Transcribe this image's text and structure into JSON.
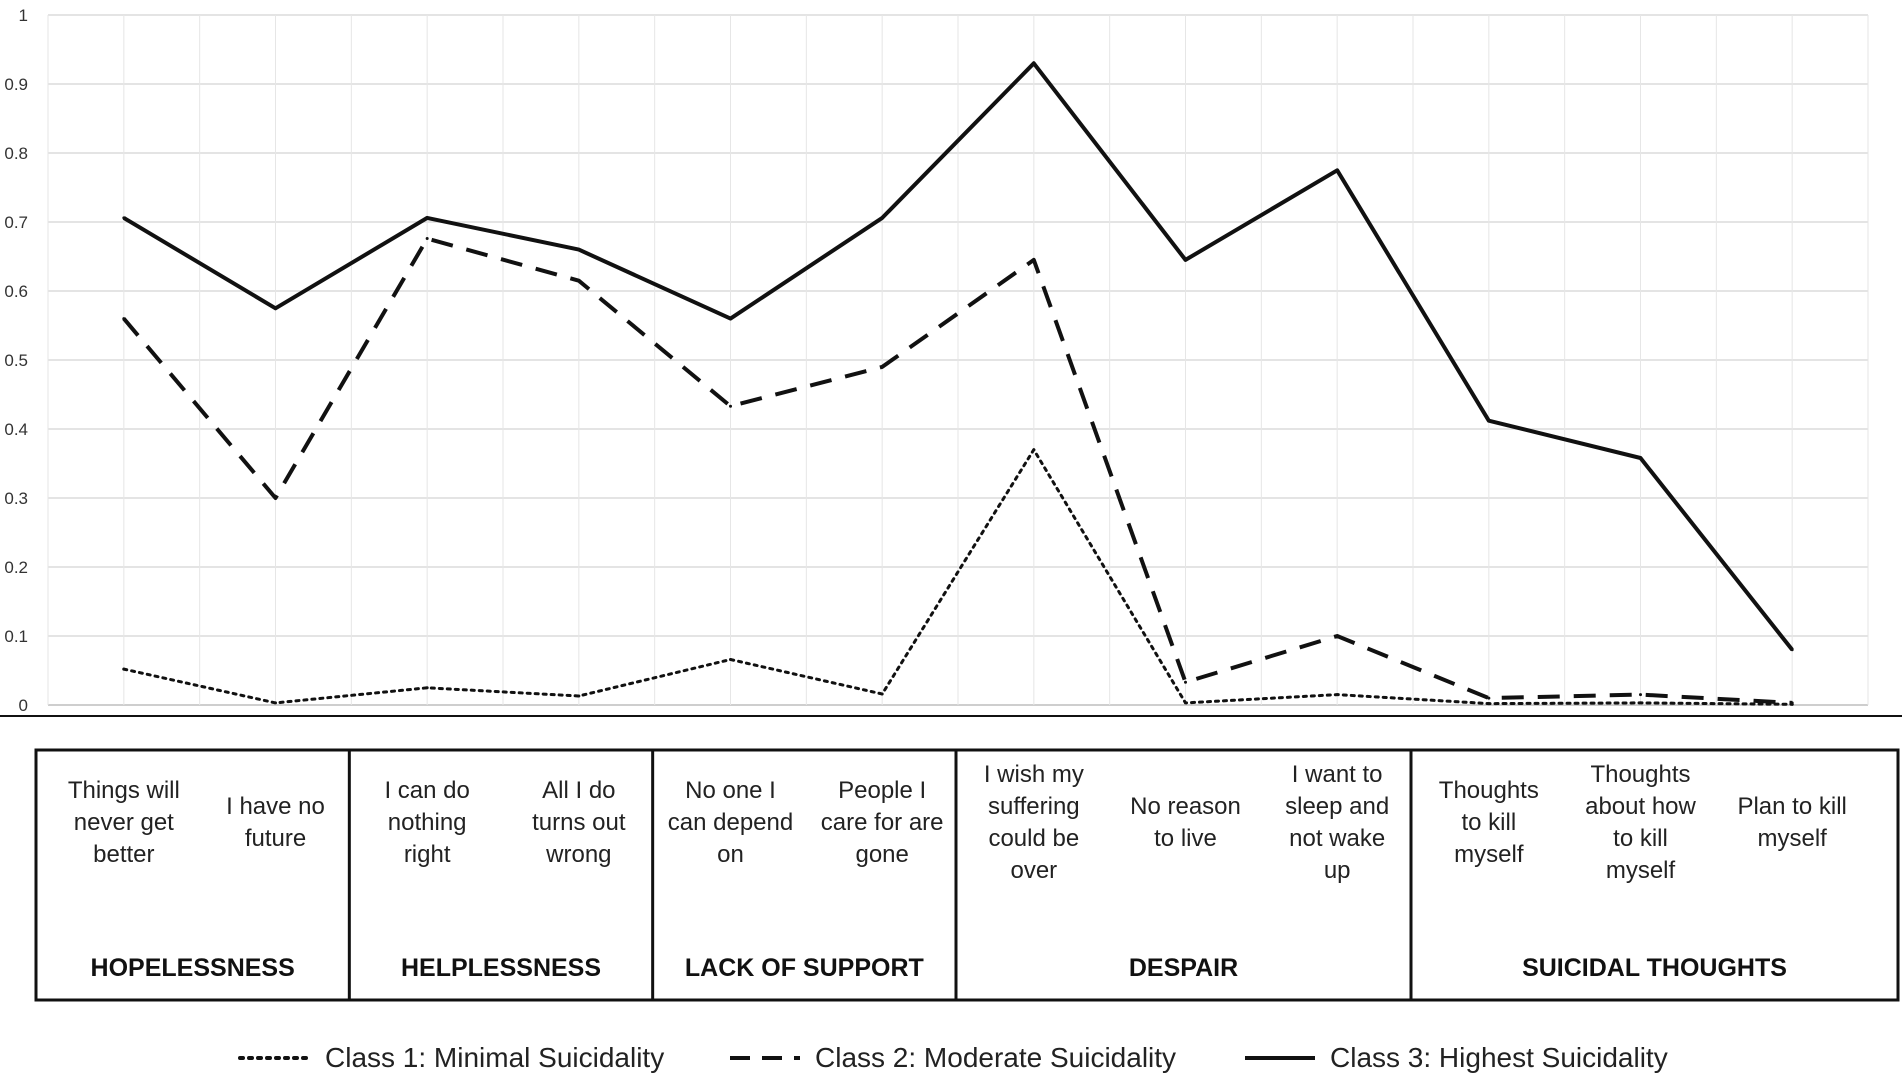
{
  "chart_data": {
    "type": "line",
    "ylim": [
      0,
      1
    ],
    "yticks": [
      "0",
      "0.1",
      "0.2",
      "0.3",
      "0.4",
      "0.5",
      "0.6",
      "0.7",
      "0.8",
      "0.9",
      "1"
    ],
    "grid": true,
    "categories": [
      [
        "Things will",
        "never get",
        "better"
      ],
      [
        "I have no",
        "future"
      ],
      [
        "I can do",
        "nothing",
        "right"
      ],
      [
        "All I do",
        "turns out",
        "wrong"
      ],
      [
        "No one I",
        "can depend",
        "on"
      ],
      [
        "People I",
        "care for are",
        "gone"
      ],
      [
        "I wish my",
        "suffering",
        "could be",
        "over"
      ],
      [
        "No reason",
        "to live"
      ],
      [
        "I want to",
        "sleep and",
        "not wake",
        "up"
      ],
      [
        "Thoughts",
        "to kill",
        "myself"
      ],
      [
        "Thoughts",
        "about how",
        "to kill",
        "myself"
      ],
      [
        "Plan to kill",
        "myself"
      ]
    ],
    "groups": [
      {
        "label": "HOPELESSNESS",
        "items": 2
      },
      {
        "label": "HELPLESSNESS",
        "items": 2
      },
      {
        "label": "LACK OF SUPPORT",
        "items": 2
      },
      {
        "label": "DESPAIR",
        "items": 3
      },
      {
        "label": "SUICIDAL THOUGHTS",
        "items": 3
      }
    ],
    "series": [
      {
        "name": "Class 1: Minimal Suicidality",
        "style": "dotted",
        "values": [
          0.052,
          0.003,
          0.025,
          0.013,
          0.066,
          0.016,
          0.37,
          0.003,
          0.015,
          0.002,
          0.003,
          0.001
        ]
      },
      {
        "name": "Class 2: Moderate Suicidality",
        "style": "dashed",
        "values": [
          0.56,
          0.3,
          0.676,
          0.615,
          0.433,
          0.49,
          0.645,
          0.033,
          0.1,
          0.01,
          0.015,
          0.003
        ]
      },
      {
        "name": "Class 3: Highest Suicidality",
        "style": "solid",
        "values": [
          0.706,
          0.575,
          0.706,
          0.66,
          0.56,
          0.706,
          0.93,
          0.645,
          0.775,
          0.412,
          0.358,
          0.08
        ]
      }
    ]
  }
}
